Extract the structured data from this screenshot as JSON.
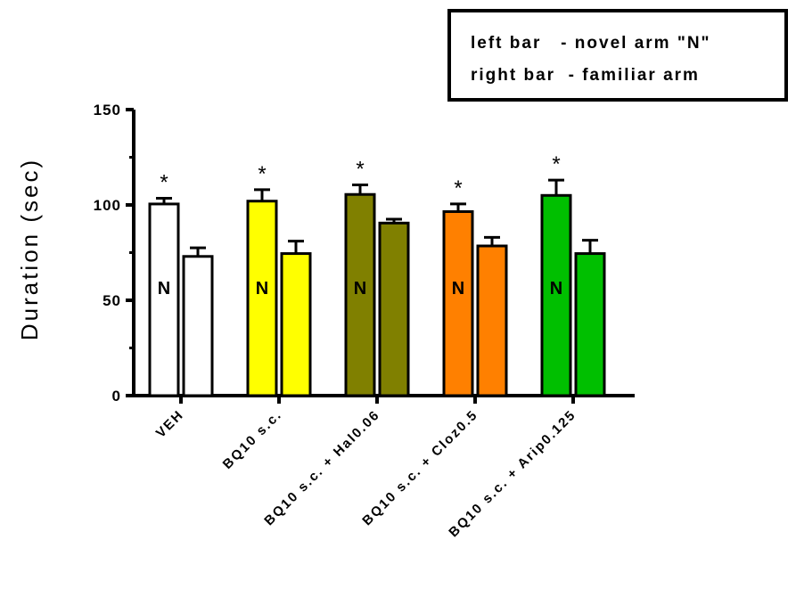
{
  "legend": {
    "line1": "left bar   - novel arm \"N\"",
    "line2": "right bar  - familiar arm"
  },
  "chart_data": {
    "type": "bar",
    "title": "",
    "xlabel": "",
    "ylabel": "Duration (sec)",
    "ylim": [
      0,
      150
    ],
    "yticks": [
      0,
      50,
      100,
      150
    ],
    "grid": false,
    "legend_placement": "top-right",
    "categories": [
      "VEH",
      "BQ10 s.c.",
      "BQ10 s.c. + Hal0.06",
      "BQ10 s.c. + Cloz0.5",
      "BQ10 s.c. + Arip0.125"
    ],
    "colors": [
      "#ffffff",
      "#ffff00",
      "#808000",
      "#ff8000",
      "#00bf00"
    ],
    "series": [
      {
        "name": "left bar - novel arm \"N\"",
        "bar_label": "N",
        "values": [
          100.5,
          102,
          105.5,
          96.5,
          105
        ],
        "errors": [
          3,
          6,
          5,
          4,
          8
        ]
      },
      {
        "name": "right bar - familiar arm",
        "values": [
          73,
          74.5,
          90.5,
          78.5,
          74.5
        ],
        "errors": [
          4.5,
          6.5,
          2,
          4.5,
          7
        ]
      }
    ],
    "significance": [
      "*",
      "*",
      "*",
      "*",
      "*"
    ]
  }
}
